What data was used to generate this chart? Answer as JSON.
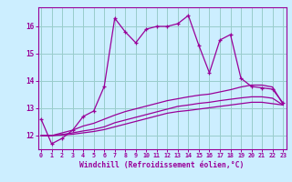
{
  "xlabel": "Windchill (Refroidissement éolien,°C)",
  "bg_color": "#cceeff",
  "line_color": "#990099",
  "grid_color": "#99cccc",
  "x_values": [
    0,
    1,
    2,
    3,
    4,
    5,
    6,
    7,
    8,
    9,
    10,
    11,
    12,
    13,
    14,
    15,
    16,
    17,
    18,
    19,
    20,
    21,
    22,
    23
  ],
  "series1": [
    12.6,
    11.7,
    11.9,
    12.2,
    12.7,
    12.9,
    13.8,
    16.3,
    15.8,
    15.4,
    15.9,
    16.0,
    16.0,
    16.1,
    16.4,
    15.3,
    14.3,
    15.5,
    15.7,
    14.1,
    13.8,
    13.75,
    13.7,
    13.2
  ],
  "series2": [
    12.0,
    12.0,
    12.1,
    12.2,
    12.35,
    12.45,
    12.6,
    12.75,
    12.88,
    12.98,
    13.08,
    13.18,
    13.28,
    13.35,
    13.42,
    13.48,
    13.52,
    13.6,
    13.68,
    13.78,
    13.85,
    13.85,
    13.78,
    13.15
  ],
  "series3": [
    12.0,
    12.0,
    12.04,
    12.1,
    12.17,
    12.23,
    12.32,
    12.47,
    12.57,
    12.67,
    12.77,
    12.87,
    12.97,
    13.07,
    13.12,
    13.18,
    13.22,
    13.28,
    13.33,
    13.38,
    13.42,
    13.42,
    13.37,
    13.12
  ],
  "series4": [
    12.0,
    12.0,
    12.02,
    12.05,
    12.1,
    12.15,
    12.22,
    12.32,
    12.42,
    12.52,
    12.62,
    12.72,
    12.82,
    12.88,
    12.92,
    12.97,
    13.02,
    13.07,
    13.12,
    13.17,
    13.22,
    13.22,
    13.17,
    13.12
  ],
  "ylim": [
    11.5,
    16.7
  ],
  "yticks": [
    12,
    13,
    14,
    15,
    16
  ],
  "xticks": [
    0,
    1,
    2,
    3,
    4,
    5,
    6,
    7,
    8,
    9,
    10,
    11,
    12,
    13,
    14,
    15,
    16,
    17,
    18,
    19,
    20,
    21,
    22,
    23
  ]
}
